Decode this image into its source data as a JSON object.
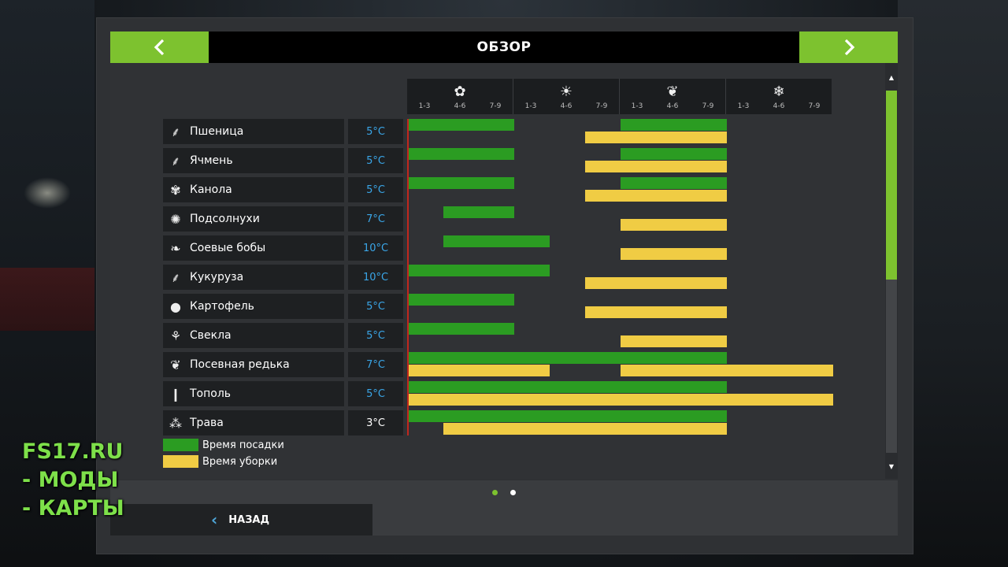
{
  "header": {
    "title": "ОБЗОР",
    "prev_icon": "chevron-left-icon",
    "next_icon": "chevron-right-icon"
  },
  "seasons": [
    {
      "icon": "spring-flower-icon",
      "glyph": "✿",
      "sub": [
        "1-3",
        "4-6",
        "7-9"
      ]
    },
    {
      "icon": "summer-sun-icon",
      "glyph": "☀",
      "sub": [
        "1-3",
        "4-6",
        "7-9"
      ]
    },
    {
      "icon": "autumn-leaf-icon",
      "glyph": "❦",
      "sub": [
        "1-3",
        "4-6",
        "7-9"
      ]
    },
    {
      "icon": "winter-snowflake-icon",
      "glyph": "❄",
      "sub": [
        "1-3",
        "4-6",
        "7-9"
      ]
    }
  ],
  "crops": [
    {
      "name": "Пшеница",
      "icon": "wheat-icon",
      "glyph": "⸙",
      "temp": "5°C"
    },
    {
      "name": "Ячмень",
      "icon": "barley-icon",
      "glyph": "⸙",
      "temp": "5°C"
    },
    {
      "name": "Канола",
      "icon": "canola-icon",
      "glyph": "✾",
      "temp": "5°C"
    },
    {
      "name": "Подсолнухи",
      "icon": "sunflower-icon",
      "glyph": "✺",
      "temp": "7°C"
    },
    {
      "name": "Соевые бобы",
      "icon": "soybean-icon",
      "glyph": "❧",
      "temp": "10°C"
    },
    {
      "name": "Кукуруза",
      "icon": "corn-icon",
      "glyph": "⸙",
      "temp": "10°C"
    },
    {
      "name": "Картофель",
      "icon": "potato-icon",
      "glyph": "●",
      "temp": "5°C"
    },
    {
      "name": "Свекла",
      "icon": "sugarbeet-icon",
      "glyph": "⚘",
      "temp": "5°C"
    },
    {
      "name": "Посевная редька",
      "icon": "oilseed-radish-icon",
      "glyph": "❦",
      "temp": "7°C"
    },
    {
      "name": "Тополь",
      "icon": "poplar-icon",
      "glyph": "❙",
      "temp": "5°C"
    },
    {
      "name": "Трава",
      "icon": "grass-icon",
      "glyph": "⁂",
      "temp": "3°C"
    }
  ],
  "chart_data": {
    "type": "gantt",
    "periods": [
      "1-3",
      "4-6",
      "7-9",
      "1-3",
      "4-6",
      "7-9",
      "1-3",
      "4-6",
      "7-9",
      "1-3",
      "4-6",
      "7-9"
    ],
    "series": [
      {
        "name": "Время посадки",
        "color": "#2b9c22"
      },
      {
        "name": "Время уборки",
        "color": "#f0cc44"
      }
    ],
    "rows": [
      {
        "plant": [
          [
            0,
            3
          ],
          [
            6,
            9
          ]
        ],
        "harvest": [
          [
            5,
            9
          ]
        ]
      },
      {
        "plant": [
          [
            0,
            3
          ],
          [
            6,
            9
          ]
        ],
        "harvest": [
          [
            5,
            9
          ]
        ]
      },
      {
        "plant": [
          [
            0,
            3
          ],
          [
            6,
            9
          ]
        ],
        "harvest": [
          [
            5,
            9
          ]
        ]
      },
      {
        "plant": [
          [
            1,
            3
          ]
        ],
        "harvest": [
          [
            6,
            9
          ]
        ]
      },
      {
        "plant": [
          [
            1,
            4
          ]
        ],
        "harvest": [
          [
            6,
            9
          ]
        ]
      },
      {
        "plant": [
          [
            0,
            4
          ]
        ],
        "harvest": [
          [
            5,
            9
          ]
        ]
      },
      {
        "plant": [
          [
            0,
            3
          ]
        ],
        "harvest": [
          [
            5,
            9
          ]
        ]
      },
      {
        "plant": [
          [
            0,
            3
          ]
        ],
        "harvest": [
          [
            6,
            9
          ]
        ]
      },
      {
        "plant": [
          [
            0,
            9
          ]
        ],
        "harvest": [
          [
            0,
            4
          ],
          [
            6,
            12
          ]
        ]
      },
      {
        "plant": [
          [
            0,
            9
          ]
        ],
        "harvest": [
          [
            0,
            12
          ]
        ]
      },
      {
        "plant": [
          [
            0,
            9
          ]
        ],
        "harvest": [
          [
            1,
            9
          ]
        ]
      }
    ],
    "current_marker": 0
  },
  "legend": {
    "planting": "Время посадки",
    "harvest": "Время уборки"
  },
  "pagination": {
    "pages": 2,
    "active": 0
  },
  "footer": {
    "back_label": "НАЗАД"
  },
  "watermark": {
    "line1": "FS17.RU",
    "line2": "- МОДЫ",
    "line3": "- КАРТЫ"
  },
  "colors": {
    "accent": "#7dc22f",
    "temp_text": "#3aa6e8",
    "temp_text_alt": "#ffffff",
    "planting": "#2b9c22",
    "harvest": "#f0cc44",
    "marker": "#c0271e"
  }
}
